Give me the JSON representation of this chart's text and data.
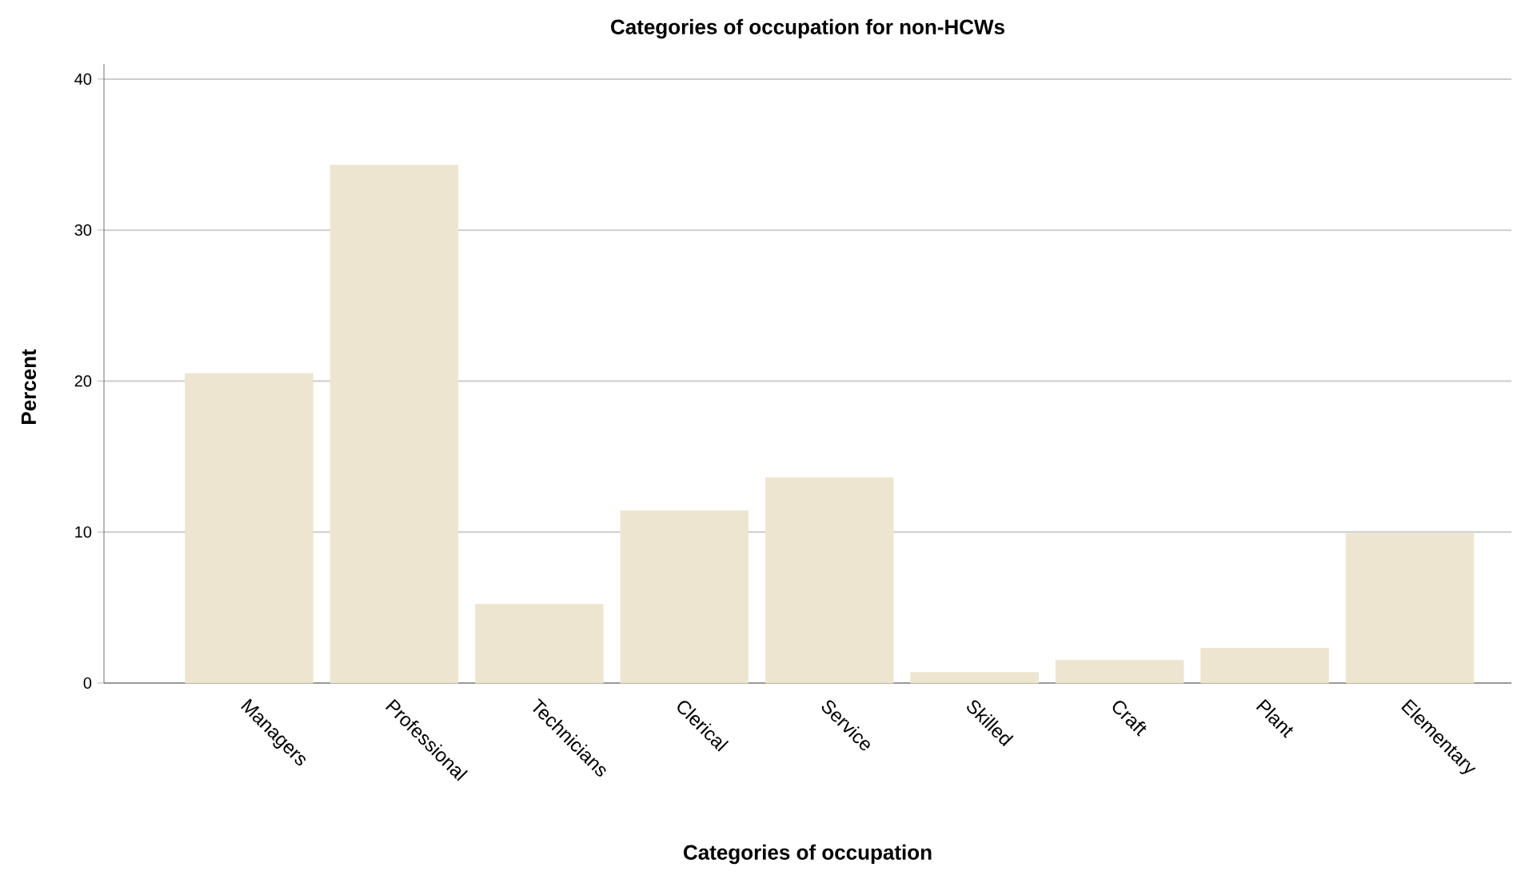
{
  "chart_data": {
    "type": "bar",
    "title": "Categories of occupation for non-HCWs",
    "xlabel": "Categories of occupation",
    "ylabel": "Percent",
    "categories": [
      "Managers",
      "Professional",
      "Technicians",
      "Clerical",
      "Service",
      "Skilled",
      "Craft",
      "Plant",
      "Elementary"
    ],
    "values": [
      20.5,
      34.3,
      5.2,
      11.4,
      13.6,
      0.7,
      1.5,
      2.3,
      9.9
    ],
    "color": "#ede5cf",
    "ylim": [
      0,
      41
    ],
    "yticks": [
      0,
      10,
      20,
      30,
      40
    ],
    "grid": "y"
  }
}
